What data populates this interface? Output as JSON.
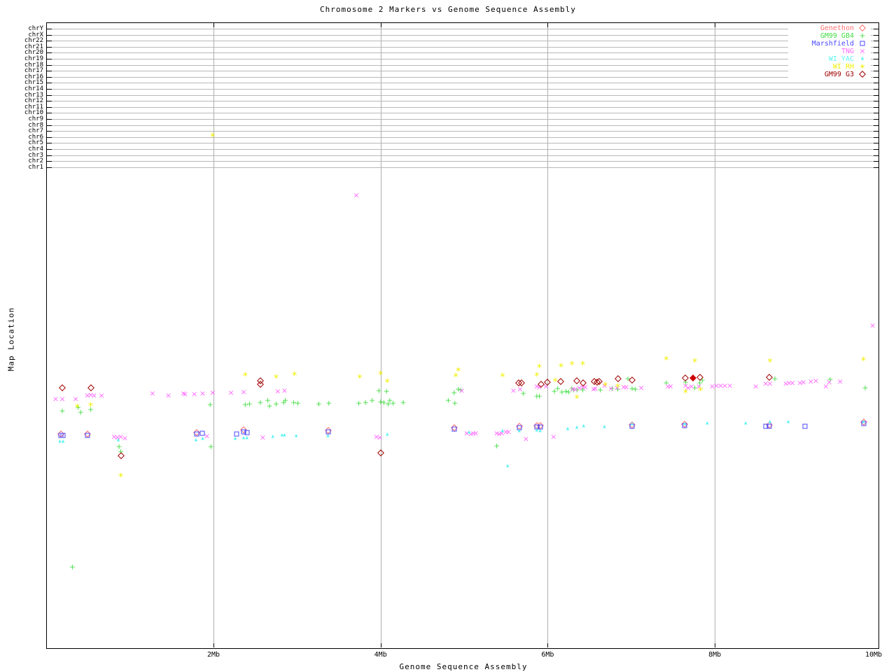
{
  "title": "Chromosome 2 Markers vs Genome Sequence Assembly",
  "axes": {
    "x": {
      "label": "Genome Sequence Assembly",
      "ticks": [
        {
          "label": "2Mb",
          "mb": 2,
          "grid": true
        },
        {
          "label": "4Mb",
          "mb": 4,
          "grid": true
        },
        {
          "label": "6Mb",
          "mb": 6,
          "grid": true
        },
        {
          "label": "8Mb",
          "mb": 8,
          "grid": true
        },
        {
          "label": "10Mb",
          "mb": 10,
          "grid": false
        }
      ]
    },
    "y": {
      "label": "Map Location",
      "chromosomes": [
        "chrY",
        "chrX",
        "chr22",
        "chr21",
        "chr20",
        "chr19",
        "chr18",
        "chr17",
        "chr16",
        "chr15",
        "chr14",
        "chr13",
        "chr12",
        "chr11",
        "chr10",
        "chr9",
        "chr8",
        "chr7",
        "chr6",
        "chr5",
        "chr4",
        "chr3",
        "chr2",
        "chr1"
      ]
    }
  },
  "legend": [
    {
      "label": "Genethon",
      "color": "#ff7070",
      "marker": "diamond"
    },
    {
      "label": "GM99 GB4",
      "color": "#44dd44",
      "marker": "plus"
    },
    {
      "label": "Marshfield",
      "color": "#4848ff",
      "marker": "square"
    },
    {
      "label": "TNG",
      "color": "#ff6bff",
      "marker": "cross"
    },
    {
      "label": "WI YAC",
      "color": "#5ef2f2",
      "marker": "tri"
    },
    {
      "label": "WI RH",
      "color": "#f0f000",
      "marker": "star"
    },
    {
      "label": "GM99 G3",
      "color": "#a00000",
      "marker": "diamond"
    }
  ],
  "chart_data": {
    "type": "scatter",
    "title": "Chromosome 2 Markers vs Genome Sequence Assembly",
    "xlabel": "Genome Sequence Assembly",
    "ylabel": "Map Location",
    "x_axis": {
      "unit": "Mb",
      "range": [
        0,
        10
      ],
      "ticks": [
        2,
        4,
        6,
        8,
        10
      ],
      "grid": true
    },
    "y_axis": {
      "note": "No numeric scale shown; top band has one gridline per chromosome (chrY down to chr1). Point y-values below are screen pixels.",
      "grid": "chromosome rows only"
    },
    "legend_position": "top-right inside plot",
    "point_coords": "x in Mb, y in original screenshot pixels (top=0)",
    "series": [
      {
        "name": "Genethon",
        "color": "#ff7070",
        "marker": "diamond",
        "points": [
          [
            0.17,
            620
          ],
          [
            0.49,
            620
          ],
          [
            1.8,
            618
          ],
          [
            2.36,
            614
          ],
          [
            3.37,
            615
          ],
          [
            4.88,
            611
          ],
          [
            5.66,
            609
          ],
          [
            5.87,
            608
          ],
          [
            5.91,
            608
          ],
          [
            7.01,
            607
          ],
          [
            7.64,
            606
          ],
          [
            8.65,
            607
          ],
          [
            9.78,
            603
          ]
        ]
      },
      {
        "name": "GM99 GB4",
        "color": "#44dd44",
        "marker": "plus",
        "points": [
          [
            0.19,
            587
          ],
          [
            0.31,
            810
          ],
          [
            0.38,
            582
          ],
          [
            0.41,
            589
          ],
          [
            0.53,
            585
          ],
          [
            0.87,
            638
          ],
          [
            0.89,
            645
          ],
          [
            1.96,
            578
          ],
          [
            1.97,
            638
          ],
          [
            2.38,
            578
          ],
          [
            2.43,
            577
          ],
          [
            2.56,
            575
          ],
          [
            2.65,
            572
          ],
          [
            2.67,
            580
          ],
          [
            2.75,
            577
          ],
          [
            2.84,
            575
          ],
          [
            2.86,
            572
          ],
          [
            2.96,
            575
          ],
          [
            3.01,
            576
          ],
          [
            3.26,
            577
          ],
          [
            3.38,
            576
          ],
          [
            3.74,
            576
          ],
          [
            3.82,
            575
          ],
          [
            3.9,
            572
          ],
          [
            3.98,
            558
          ],
          [
            4.0,
            574
          ],
          [
            4.04,
            575
          ],
          [
            4.07,
            559
          ],
          [
            4.09,
            577
          ],
          [
            4.11,
            572
          ],
          [
            4.15,
            576
          ],
          [
            4.27,
            575
          ],
          [
            4.81,
            572
          ],
          [
            4.88,
            561
          ],
          [
            4.89,
            576
          ],
          [
            4.93,
            556
          ],
          [
            4.96,
            557
          ],
          [
            5.39,
            637
          ],
          [
            5.71,
            562
          ],
          [
            5.87,
            566
          ],
          [
            5.9,
            566
          ],
          [
            6.08,
            559
          ],
          [
            6.12,
            555
          ],
          [
            6.17,
            560
          ],
          [
            6.22,
            559
          ],
          [
            6.25,
            560
          ],
          [
            6.29,
            555
          ],
          [
            6.31,
            557
          ],
          [
            6.35,
            557
          ],
          [
            6.42,
            557
          ],
          [
            6.63,
            557
          ],
          [
            6.77,
            555
          ],
          [
            6.84,
            556
          ],
          [
            6.96,
            541
          ],
          [
            7.01,
            555
          ],
          [
            7.05,
            556
          ],
          [
            7.42,
            547
          ],
          [
            7.65,
            546
          ],
          [
            7.76,
            554
          ],
          [
            7.82,
            547
          ],
          [
            7.85,
            543
          ],
          [
            8.72,
            541
          ],
          [
            9.38,
            542
          ],
          [
            9.8,
            554
          ]
        ]
      },
      {
        "name": "Marshfield",
        "color": "#4848ff",
        "marker": "square",
        "points": [
          [
            0.17,
            622
          ],
          [
            0.2,
            622
          ],
          [
            0.49,
            622
          ],
          [
            1.8,
            620
          ],
          [
            1.87,
            619
          ],
          [
            2.28,
            620
          ],
          [
            2.36,
            617
          ],
          [
            2.4,
            618
          ],
          [
            3.37,
            617
          ],
          [
            4.88,
            613
          ],
          [
            5.66,
            611
          ],
          [
            5.87,
            610
          ],
          [
            5.91,
            610
          ],
          [
            7.01,
            609
          ],
          [
            7.64,
            608
          ],
          [
            8.61,
            609
          ],
          [
            8.65,
            609
          ],
          [
            9.08,
            609
          ],
          [
            9.78,
            605
          ]
        ]
      },
      {
        "name": "TNG",
        "color": "#ff6bff",
        "marker": "cross",
        "points": [
          [
            0.11,
            570
          ],
          [
            0.19,
            570
          ],
          [
            0.35,
            570
          ],
          [
            0.49,
            565
          ],
          [
            0.53,
            564
          ],
          [
            0.57,
            565
          ],
          [
            0.66,
            565
          ],
          [
            0.81,
            624
          ],
          [
            0.85,
            625
          ],
          [
            0.89,
            624
          ],
          [
            0.94,
            626
          ],
          [
            1.27,
            562
          ],
          [
            1.46,
            565
          ],
          [
            1.64,
            562
          ],
          [
            1.66,
            563
          ],
          [
            1.77,
            563
          ],
          [
            1.87,
            562
          ],
          [
            1.92,
            623
          ],
          [
            1.99,
            561
          ],
          [
            2.21,
            561
          ],
          [
            2.36,
            560
          ],
          [
            2.59,
            625
          ],
          [
            2.77,
            559
          ],
          [
            2.85,
            558
          ],
          [
            3.71,
            279
          ],
          [
            3.95,
            624
          ],
          [
            3.99,
            625
          ],
          [
            4.97,
            558
          ],
          [
            5.03,
            619
          ],
          [
            5.08,
            620
          ],
          [
            5.11,
            619
          ],
          [
            5.14,
            619
          ],
          [
            5.39,
            619
          ],
          [
            5.42,
            620
          ],
          [
            5.45,
            619
          ],
          [
            5.5,
            617
          ],
          [
            5.53,
            617
          ],
          [
            5.59,
            558
          ],
          [
            5.67,
            556
          ],
          [
            5.74,
            627
          ],
          [
            5.87,
            552
          ],
          [
            5.9,
            553
          ],
          [
            5.98,
            552
          ],
          [
            6.07,
            624
          ],
          [
            6.3,
            556
          ],
          [
            6.33,
            556
          ],
          [
            6.38,
            554
          ],
          [
            6.42,
            553
          ],
          [
            6.45,
            553
          ],
          [
            6.55,
            556
          ],
          [
            6.57,
            555
          ],
          [
            6.68,
            551
          ],
          [
            6.76,
            555
          ],
          [
            6.83,
            554
          ],
          [
            6.91,
            553
          ],
          [
            6.94,
            553
          ],
          [
            7.12,
            554
          ],
          [
            7.44,
            552
          ],
          [
            7.47,
            552
          ],
          [
            7.65,
            551
          ],
          [
            7.68,
            554
          ],
          [
            7.72,
            552
          ],
          [
            7.81,
            552
          ],
          [
            7.97,
            552
          ],
          [
            8.02,
            551
          ],
          [
            8.07,
            551
          ],
          [
            8.12,
            551
          ],
          [
            8.18,
            551
          ],
          [
            8.49,
            552
          ],
          [
            8.61,
            548
          ],
          [
            8.66,
            548
          ],
          [
            8.85,
            548
          ],
          [
            8.89,
            547
          ],
          [
            8.93,
            547
          ],
          [
            9.02,
            547
          ],
          [
            9.06,
            546
          ],
          [
            9.15,
            545
          ],
          [
            9.21,
            544
          ],
          [
            9.33,
            552
          ],
          [
            9.37,
            546
          ],
          [
            9.5,
            545
          ],
          [
            9.89,
            465
          ]
        ]
      },
      {
        "name": "WI YAC",
        "color": "#5ef2f2",
        "marker": "tri",
        "points": [
          [
            0.16,
            631
          ],
          [
            0.2,
            631
          ],
          [
            0.86,
            629
          ],
          [
            1.79,
            629
          ],
          [
            1.87,
            627
          ],
          [
            2.26,
            627
          ],
          [
            2.36,
            626
          ],
          [
            2.4,
            626
          ],
          [
            2.71,
            624
          ],
          [
            2.82,
            622
          ],
          [
            2.85,
            622
          ],
          [
            2.99,
            623
          ],
          [
            3.37,
            623
          ],
          [
            4.08,
            621
          ],
          [
            5.06,
            618
          ],
          [
            5.46,
            616
          ],
          [
            5.52,
            666
          ],
          [
            5.66,
            616
          ],
          [
            5.87,
            615
          ],
          [
            5.91,
            616
          ],
          [
            6.24,
            613
          ],
          [
            6.35,
            611
          ],
          [
            6.43,
            609
          ],
          [
            6.68,
            610
          ],
          [
            7.01,
            606
          ],
          [
            7.64,
            606
          ],
          [
            7.91,
            605
          ],
          [
            8.37,
            605
          ],
          [
            8.66,
            603
          ],
          [
            8.88,
            603
          ],
          [
            9.78,
            603
          ]
        ]
      },
      {
        "name": "WI RH",
        "color": "#f0f000",
        "marker": "star",
        "points": [
          [
            0.37,
            580
          ],
          [
            0.53,
            578
          ],
          [
            0.89,
            679
          ],
          [
            1.99,
            193
          ],
          [
            2.38,
            535
          ],
          [
            2.75,
            538
          ],
          [
            2.97,
            534
          ],
          [
            3.75,
            538
          ],
          [
            4.0,
            533
          ],
          [
            4.08,
            544
          ],
          [
            4.9,
            536
          ],
          [
            4.93,
            528
          ],
          [
            5.46,
            536
          ],
          [
            5.87,
            535
          ],
          [
            5.9,
            523
          ],
          [
            6.09,
            543
          ],
          [
            6.16,
            522
          ],
          [
            6.29,
            519
          ],
          [
            6.35,
            567
          ],
          [
            6.42,
            519
          ],
          [
            6.69,
            549
          ],
          [
            6.84,
            551
          ],
          [
            7.42,
            512
          ],
          [
            7.65,
            559
          ],
          [
            7.76,
            515
          ],
          [
            7.83,
            556
          ],
          [
            8.66,
            515
          ],
          [
            9.78,
            513
          ]
        ]
      },
      {
        "name": "GM99 G3",
        "color": "#a00000",
        "marker": "diamond",
        "points": [
          [
            0.19,
            554
          ],
          [
            0.53,
            554
          ],
          [
            0.89,
            651
          ],
          [
            2.56,
            544
          ],
          [
            2.56,
            549
          ],
          [
            4.0,
            647
          ],
          [
            5.65,
            547
          ],
          [
            5.69,
            547
          ],
          [
            5.92,
            549
          ],
          [
            6.0,
            546
          ],
          [
            6.16,
            545
          ],
          [
            6.35,
            544
          ],
          [
            6.42,
            547
          ],
          [
            6.56,
            545
          ],
          [
            6.59,
            546
          ],
          [
            6.62,
            545
          ],
          [
            6.84,
            541
          ],
          [
            7.01,
            543
          ],
          [
            7.65,
            540
          ],
          [
            7.82,
            539
          ],
          [
            8.65,
            539
          ]
        ],
        "filled_points": [
          [
            7.74,
            540
          ]
        ],
        "filled_color": "#cc0000"
      }
    ]
  }
}
